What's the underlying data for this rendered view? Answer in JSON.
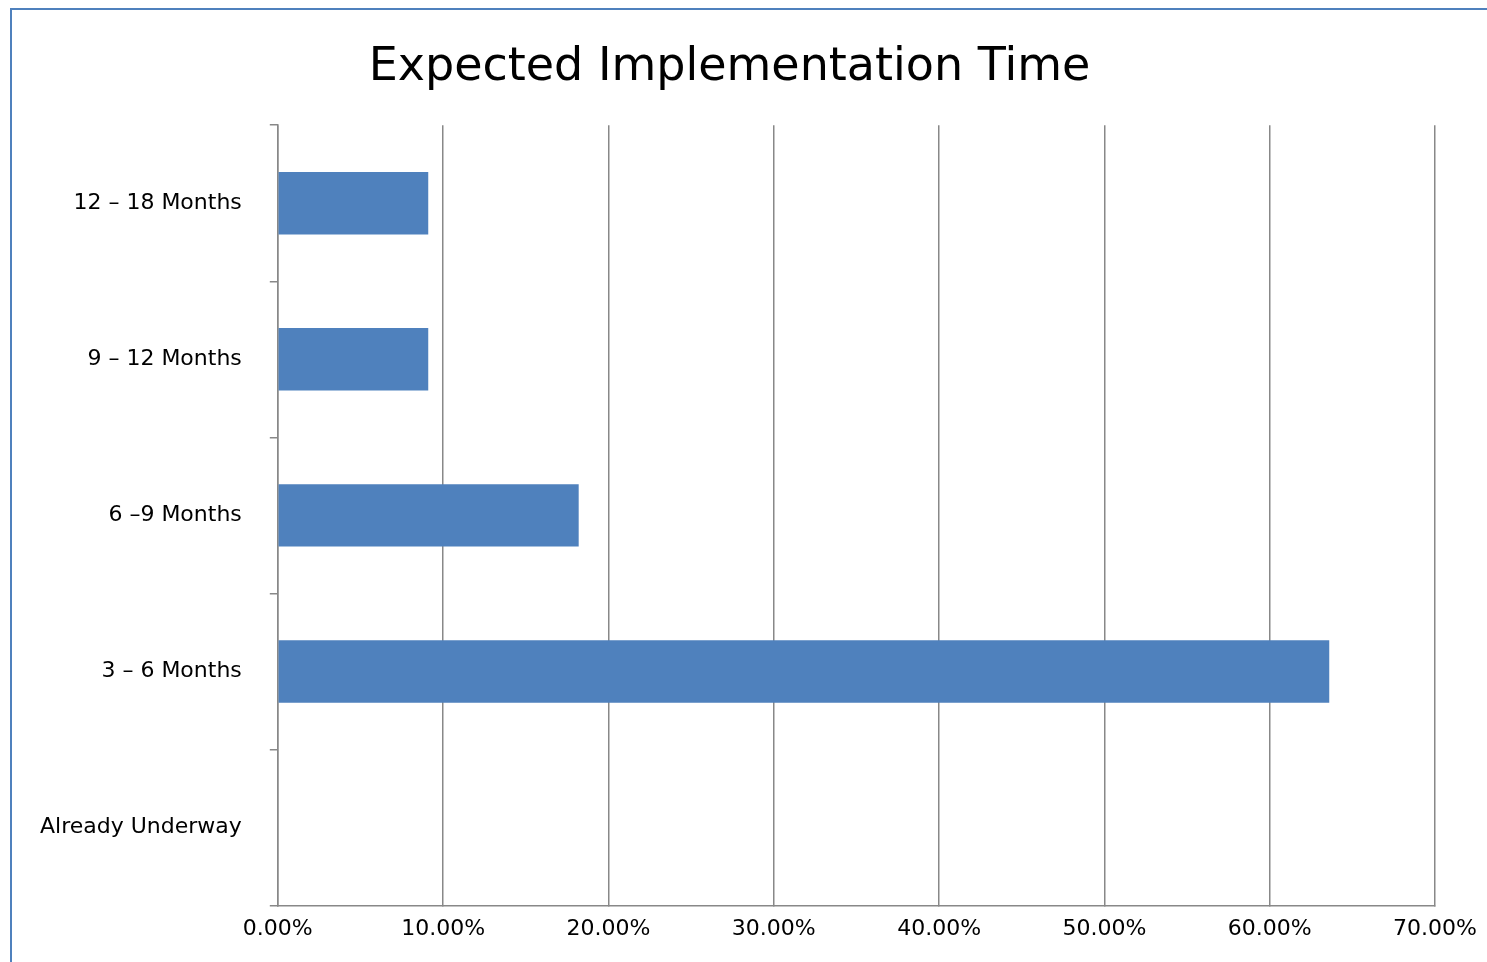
{
  "chart_data": {
    "type": "bar",
    "orientation": "horizontal",
    "title": "Expected Implementation Time",
    "categories": [
      "12 – 18 Months",
      "9 – 12 Months",
      "6 –9 Months",
      "3 – 6 Months",
      "Already Underway"
    ],
    "values": [
      9.1,
      9.1,
      18.2,
      63.6,
      0
    ],
    "color": "#4f81bd",
    "xlim": [
      0,
      70
    ],
    "xticks": [
      {
        "value": 0,
        "label": "0.00%"
      },
      {
        "value": 10,
        "label": "10.00%"
      },
      {
        "value": 20,
        "label": "20.00%"
      },
      {
        "value": 30,
        "label": "30.00%"
      },
      {
        "value": 40,
        "label": "40.00%"
      },
      {
        "value": 50,
        "label": "50.00%"
      },
      {
        "value": 60,
        "label": "60.00%"
      },
      {
        "value": 70,
        "label": "70.00%"
      }
    ],
    "grid": "x",
    "legend": false
  }
}
